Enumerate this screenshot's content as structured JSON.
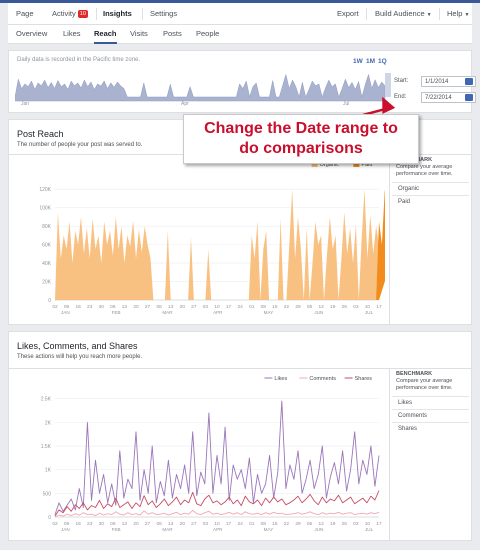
{
  "nav": {
    "page": "Page",
    "activity": "Activity",
    "activity_badge": "10",
    "insights": "Insights",
    "settings": "Settings",
    "export": "Export",
    "build_audience": "Build Audience",
    "help": "Help"
  },
  "subnav": {
    "overview": "Overview",
    "likes": "Likes",
    "reach": "Reach",
    "visits": "Visits",
    "posts": "Posts",
    "people": "People"
  },
  "range": {
    "info": "Daily data is recorded in the Pacific time zone.",
    "zoom_1w": "1W",
    "zoom_1m": "1M",
    "zoom_1q": "1Q",
    "start_label": "Start:",
    "start_value": "1/1/2014",
    "end_label": "End:",
    "end_value": "7/22/2014",
    "month_labels": [
      "Jan",
      "Apr",
      "Jul"
    ]
  },
  "callout": {
    "line1": "Change the Date range to",
    "line2": "do comparisons"
  },
  "colors": {
    "organic": "#f9be7a",
    "paid": "#f28d1d",
    "likes": "#9b76ba",
    "comments": "#f3a7b3",
    "shares": "#c64d64",
    "accent": "#4267b2",
    "callout_text": "#c8102e"
  },
  "reach": {
    "title": "Post Reach",
    "subtitle": "The number of people your post was served to.",
    "benchmark": "BENCHMARK",
    "benchmark_desc": "Compare your average performance over time.",
    "options": [
      "Organic",
      "Paid"
    ]
  },
  "engage": {
    "title": "Likes, Comments, and Shares",
    "subtitle": "These actions will help you reach more people.",
    "benchmark": "BENCHMARK",
    "benchmark_desc": "Compare your average performance over time.",
    "options": [
      "Likes",
      "Comments",
      "Shares"
    ]
  },
  "chart_data": [
    {
      "type": "area",
      "title": "Post Reach",
      "ylim": [
        0,
        130000
      ],
      "y_ticks": [
        "0",
        "20K",
        "40K",
        "60K",
        "80K",
        "100K",
        "120K"
      ],
      "x_tick_labels": [
        "02",
        "09",
        "16",
        "23",
        "30",
        "06",
        "13",
        "20",
        "27",
        "06",
        "13",
        "20",
        "27",
        "03",
        "10",
        "17",
        "24",
        "01",
        "08",
        "15",
        "22",
        "29",
        "05",
        "12",
        "19",
        "26",
        "03",
        "10",
        "17"
      ],
      "month_labels": [
        "JAN",
        "FEB",
        "MAR",
        "APR",
        "MAY",
        "JUN",
        "JUL"
      ],
      "legend": [
        "Organic",
        "Paid"
      ],
      "series": [
        {
          "name": "Organic",
          "values": [
            0,
            95000,
            45000,
            70000,
            55000,
            85000,
            40000,
            75000,
            60000,
            90000,
            50000,
            78000,
            45000,
            88000,
            55000,
            70000,
            40000,
            85000,
            60000,
            75000,
            48000,
            90000,
            55000,
            80000,
            40000,
            70000,
            58000,
            86000,
            45000,
            76000,
            52000,
            80000,
            60000,
            45000,
            0,
            0,
            0,
            0,
            0,
            75000,
            0,
            0,
            0,
            0,
            0,
            0,
            0,
            68000,
            0,
            0,
            0,
            0,
            0,
            55000,
            0,
            0,
            0,
            0,
            0,
            0,
            0,
            0,
            0,
            0,
            0,
            0,
            0,
            0,
            70000,
            45000,
            85000,
            0,
            55000,
            75000,
            0,
            0,
            0,
            0,
            88000,
            0,
            0,
            60000,
            120000,
            45000,
            90000,
            55000,
            0,
            78000,
            0,
            40000,
            85000,
            60000,
            70000,
            0,
            48000,
            90000,
            55000,
            70000,
            0,
            45000,
            95000,
            50000,
            78000,
            40000,
            82000,
            0,
            65000,
            120000,
            45000,
            92000,
            50000,
            80000,
            60000
          ]
        },
        {
          "name": "Paid",
          "values": [
            0,
            0,
            0,
            0,
            0,
            0,
            0,
            0,
            0,
            0,
            0,
            0,
            0,
            0,
            0,
            0,
            0,
            0,
            0,
            0,
            0,
            0,
            0,
            0,
            0,
            0,
            0,
            0,
            0,
            0,
            0,
            0,
            0,
            0,
            0,
            0,
            0,
            0,
            0,
            0,
            0,
            0,
            0,
            0,
            0,
            0,
            0,
            0,
            0,
            0,
            0,
            0,
            0,
            0,
            0,
            0,
            0,
            0,
            0,
            0,
            0,
            0,
            0,
            0,
            0,
            0,
            0,
            0,
            0,
            0,
            0,
            0,
            0,
            0,
            0,
            0,
            0,
            0,
            0,
            0,
            0,
            0,
            0,
            0,
            0,
            0,
            0,
            0,
            0,
            0,
            0,
            0,
            0,
            0,
            0,
            0,
            0,
            0,
            0,
            0,
            0,
            0,
            0,
            0,
            0,
            0,
            0,
            0,
            0,
            0,
            0,
            0,
            85000,
            60000,
            120000,
            75000,
            40000
          ]
        }
      ]
    },
    {
      "type": "line",
      "title": "Likes, Comments, and Shares",
      "ylim": [
        0,
        2600
      ],
      "y_ticks": [
        "0",
        "500",
        "1K",
        "1.5K",
        "2K",
        "2.5K"
      ],
      "x_tick_labels": [
        "02",
        "09",
        "16",
        "23",
        "30",
        "06",
        "13",
        "20",
        "27",
        "06",
        "13",
        "20",
        "27",
        "03",
        "10",
        "17",
        "24",
        "01",
        "08",
        "15",
        "22",
        "29",
        "05",
        "12",
        "19",
        "26",
        "03",
        "10",
        "17"
      ],
      "month_labels": [
        "JAN",
        "FEB",
        "MAR",
        "APR",
        "MAY",
        "JUN",
        "JUL"
      ],
      "legend": [
        "Likes",
        "Comments",
        "Shares"
      ],
      "series": [
        {
          "name": "Likes",
          "values": [
            50,
            300,
            120,
            250,
            380,
            150,
            600,
            200,
            2000,
            350,
            1200,
            500,
            900,
            300,
            700,
            250,
            1400,
            400,
            800,
            600,
            1800,
            350,
            1000,
            500,
            1500,
            300,
            750,
            450,
            1200,
            400,
            900,
            600,
            1100,
            500,
            1800,
            450,
            950,
            700,
            2200,
            500,
            1300,
            700,
            1900,
            350,
            1100,
            800,
            1000,
            600,
            1250,
            300,
            900,
            500,
            700,
            1300,
            400,
            950,
            2450,
            600,
            1100,
            800,
            1400,
            500,
            800,
            1200,
            600,
            900,
            1500,
            400,
            850,
            1150,
            700,
            1400,
            550,
            1000,
            1800,
            700,
            1200,
            900,
            1500,
            650,
            1300
          ]
        },
        {
          "name": "Comments",
          "values": [
            0,
            40,
            20,
            60,
            30,
            70,
            40,
            90,
            50,
            60,
            30,
            80,
            40,
            70,
            50,
            110,
            60,
            40,
            90,
            50,
            70,
            40,
            130,
            60,
            90,
            50,
            60,
            80,
            40,
            70,
            100,
            50,
            80,
            60,
            140,
            70,
            50,
            90,
            120,
            60,
            80,
            50,
            70,
            100,
            60,
            90,
            50,
            110,
            70,
            60,
            80,
            50,
            90,
            60,
            100,
            70,
            80,
            50,
            60,
            70,
            90,
            60,
            80,
            110,
            70,
            50,
            90,
            60,
            80,
            70,
            100,
            60,
            80,
            90,
            50,
            70,
            80,
            60,
            90,
            70,
            100
          ]
        },
        {
          "name": "Shares",
          "values": [
            20,
            150,
            90,
            220,
            120,
            260,
            180,
            300,
            150,
            240,
            200,
            350,
            180,
            280,
            220,
            400,
            200,
            260,
            320,
            180,
            300,
            220,
            450,
            260,
            340,
            200,
            280,
            380,
            240,
            320,
            420,
            260,
            360,
            300,
            520,
            280,
            240,
            380,
            460,
            300,
            340,
            260,
            320,
            420,
            280,
            360,
            240,
            440,
            320,
            280,
            360,
            240,
            400,
            300,
            420,
            320,
            380,
            260,
            300,
            360,
            440,
            300,
            380,
            480,
            340,
            260,
            420,
            300,
            380,
            340,
            460,
            300,
            360,
            420,
            280,
            340,
            400,
            300,
            440,
            360,
            560
          ]
        }
      ]
    }
  ]
}
